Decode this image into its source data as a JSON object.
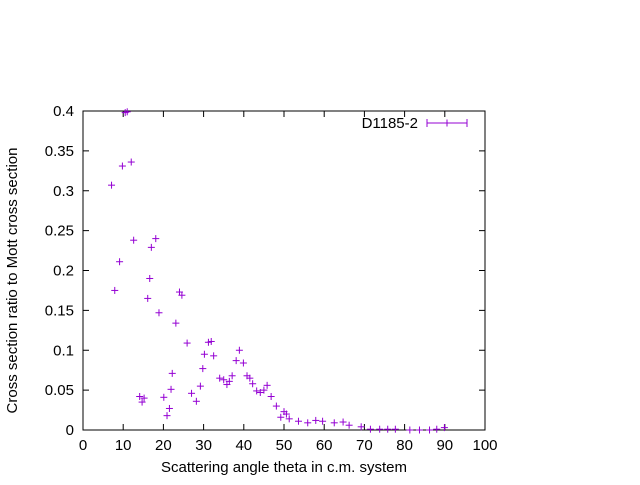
{
  "chart_data": {
    "type": "scatter",
    "title": "",
    "xlabel": "Scattering angle theta in c.m. system",
    "ylabel": "Cross section ratio to Mott cross section",
    "xlim": [
      0,
      100
    ],
    "ylim": [
      0,
      0.4
    ],
    "xticks": [
      "0",
      "10",
      "20",
      "30",
      "40",
      "50",
      "60",
      "70",
      "80",
      "90",
      "100"
    ],
    "yticks": [
      "0",
      "0.05",
      "0.1",
      "0.15",
      "0.2",
      "0.25",
      "0.3",
      "0.35",
      "0.4"
    ],
    "xtick_values": [
      0,
      10,
      20,
      30,
      40,
      50,
      60,
      70,
      80,
      90,
      100
    ],
    "ytick_values": [
      0,
      0.05,
      0.1,
      0.15,
      0.2,
      0.25,
      0.3,
      0.35,
      0.4
    ],
    "grid": false,
    "legend_position": "top-right",
    "series": [
      {
        "name": "D1185-2",
        "color": "#9400d3",
        "marker": "plus-with-xerror",
        "points": [
          [
            7.1,
            0.307
          ],
          [
            7.9,
            0.175
          ],
          [
            9.1,
            0.211
          ],
          [
            9.8,
            0.331
          ],
          [
            10.5,
            0.398
          ],
          [
            11.0,
            0.399
          ],
          [
            12.0,
            0.336
          ],
          [
            12.6,
            0.238
          ],
          [
            14.1,
            0.042
          ],
          [
            14.7,
            0.035
          ],
          [
            15.2,
            0.04
          ],
          [
            16.1,
            0.165
          ],
          [
            16.6,
            0.19
          ],
          [
            17.0,
            0.229
          ],
          [
            18.1,
            0.24
          ],
          [
            18.9,
            0.147
          ],
          [
            20.1,
            0.041
          ],
          [
            20.9,
            0.018
          ],
          [
            21.5,
            0.027
          ],
          [
            21.9,
            0.051
          ],
          [
            22.2,
            0.071
          ],
          [
            23.1,
            0.134
          ],
          [
            24.0,
            0.173
          ],
          [
            24.6,
            0.169
          ],
          [
            25.9,
            0.109
          ],
          [
            27.0,
            0.046
          ],
          [
            28.2,
            0.036
          ],
          [
            29.2,
            0.055
          ],
          [
            29.8,
            0.077
          ],
          [
            30.2,
            0.095
          ],
          [
            31.2,
            0.11
          ],
          [
            31.9,
            0.111
          ],
          [
            32.5,
            0.093
          ],
          [
            34.0,
            0.065
          ],
          [
            35.0,
            0.063
          ],
          [
            35.8,
            0.057
          ],
          [
            36.4,
            0.061
          ],
          [
            37.1,
            0.068
          ],
          [
            38.1,
            0.087
          ],
          [
            38.9,
            0.1
          ],
          [
            39.9,
            0.084
          ],
          [
            40.8,
            0.068
          ],
          [
            41.5,
            0.065
          ],
          [
            42.2,
            0.058
          ],
          [
            43.2,
            0.049
          ],
          [
            44.1,
            0.047
          ],
          [
            45.0,
            0.05
          ],
          [
            45.8,
            0.056
          ],
          [
            46.8,
            0.042
          ],
          [
            48.1,
            0.03
          ],
          [
            49.2,
            0.016
          ],
          [
            50.0,
            0.023
          ],
          [
            50.6,
            0.02
          ],
          [
            51.3,
            0.014
          ],
          [
            53.6,
            0.011
          ],
          [
            55.9,
            0.009
          ],
          [
            57.9,
            0.012
          ],
          [
            59.6,
            0.011
          ],
          [
            62.5,
            0.009
          ],
          [
            64.7,
            0.01
          ],
          [
            66.2,
            0.006
          ],
          [
            69.2,
            0.004
          ],
          [
            71.5,
            0.001
          ],
          [
            73.8,
            0.001
          ],
          [
            75.8,
            0.001
          ],
          [
            77.7,
            0.001
          ],
          [
            81.3,
            0.0
          ],
          [
            83.7,
            0.0
          ],
          [
            86.2,
            0.0
          ],
          [
            88.0,
            0.001
          ],
          [
            89.9,
            0.003
          ]
        ]
      }
    ]
  }
}
